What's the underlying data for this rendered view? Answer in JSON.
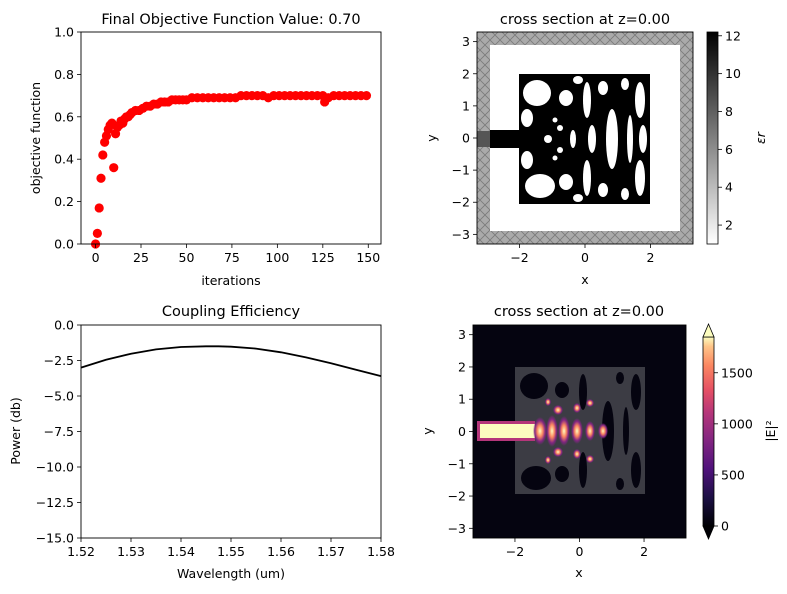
{
  "colors": {
    "series": "#ff0000",
    "line": "#000000",
    "pec": "#aaaaaa",
    "dark": "#050410"
  },
  "chart_data": [
    {
      "type": "scatter",
      "title": "Final Objective Function Value: 0.70",
      "xlabel": "iterations",
      "ylabel": "objective function",
      "xlim": [
        -8,
        157
      ],
      "ylim": [
        0,
        1.0
      ],
      "xticks": [
        "0",
        "25",
        "50",
        "75",
        "100",
        "125",
        "150"
      ],
      "xtick_values": [
        0,
        25,
        50,
        75,
        100,
        125,
        150
      ],
      "yticks": [
        "0.0",
        "0.2",
        "0.4",
        "0.6",
        "0.8",
        "1.0"
      ],
      "ytick_values": [
        0,
        0.2,
        0.4,
        0.6,
        0.8,
        1.0
      ],
      "x": [
        0,
        1,
        2,
        3,
        4,
        5,
        6,
        7,
        8,
        9,
        10,
        11,
        12,
        13,
        14,
        15,
        16,
        17,
        18,
        19,
        20,
        22,
        24,
        26,
        28,
        30,
        32,
        34,
        36,
        38,
        40,
        42,
        44,
        46,
        48,
        50,
        53,
        56,
        59,
        62,
        65,
        68,
        71,
        74,
        77,
        80,
        83,
        86,
        89,
        92,
        95,
        98,
        101,
        104,
        107,
        110,
        113,
        116,
        119,
        122,
        125,
        126,
        128,
        131,
        134,
        137,
        140,
        143,
        146,
        149
      ],
      "y": [
        0.0,
        0.05,
        0.17,
        0.31,
        0.42,
        0.48,
        0.51,
        0.54,
        0.56,
        0.57,
        0.36,
        0.52,
        0.55,
        0.56,
        0.58,
        0.57,
        0.59,
        0.6,
        0.6,
        0.61,
        0.62,
        0.63,
        0.63,
        0.64,
        0.65,
        0.65,
        0.66,
        0.66,
        0.67,
        0.67,
        0.67,
        0.68,
        0.68,
        0.68,
        0.68,
        0.68,
        0.69,
        0.69,
        0.69,
        0.69,
        0.69,
        0.69,
        0.69,
        0.69,
        0.69,
        0.7,
        0.7,
        0.7,
        0.7,
        0.7,
        0.69,
        0.7,
        0.7,
        0.7,
        0.7,
        0.7,
        0.7,
        0.7,
        0.7,
        0.7,
        0.7,
        0.67,
        0.69,
        0.7,
        0.7,
        0.7,
        0.7,
        0.7,
        0.7,
        0.7
      ]
    },
    {
      "type": "heatmap",
      "title": "cross section at z=0.00",
      "xlabel": "x",
      "ylabel": "y",
      "xlim": [
        -3.3,
        3.3
      ],
      "ylim": [
        -3.3,
        3.3
      ],
      "xticks": [
        "−2",
        "0",
        "2"
      ],
      "xtick_values": [
        -2,
        0,
        2
      ],
      "yticks": [
        "−3",
        "−2",
        "−1",
        "0",
        "1",
        "2",
        "3"
      ],
      "ytick_values": [
        -3,
        -2,
        -1,
        0,
        1,
        2,
        3
      ],
      "colorbar_label": "εr",
      "colorbar_ticks": [
        "2",
        "4",
        "6",
        "8",
        "10",
        "12"
      ],
      "colorbar_tick_values": [
        2,
        4,
        6,
        8,
        10,
        12
      ],
      "colorbar_range": [
        1,
        12.2
      ]
    },
    {
      "type": "line",
      "title": "Coupling Efficiency",
      "xlabel": "Wavelength (um)",
      "ylabel": "Power (db)",
      "xlim": [
        1.52,
        1.58
      ],
      "ylim": [
        -15.0,
        0.0
      ],
      "xticks": [
        "1.52",
        "1.53",
        "1.54",
        "1.55",
        "1.56",
        "1.57",
        "1.58"
      ],
      "xtick_values": [
        1.52,
        1.53,
        1.54,
        1.55,
        1.56,
        1.57,
        1.58
      ],
      "yticks": [
        "0.0",
        "−2.5",
        "−5.0",
        "−7.5",
        "−10.0",
        "−12.5",
        "−15.0"
      ],
      "ytick_values": [
        0,
        -2.5,
        -5.0,
        -7.5,
        -10.0,
        -12.5,
        -15.0
      ],
      "x": [
        1.52,
        1.525,
        1.53,
        1.535,
        1.54,
        1.545,
        1.5475,
        1.55,
        1.555,
        1.56,
        1.565,
        1.57,
        1.575,
        1.58
      ],
      "y": [
        -3.0,
        -2.45,
        -2.02,
        -1.72,
        -1.55,
        -1.5,
        -1.5,
        -1.53,
        -1.66,
        -1.92,
        -2.28,
        -2.7,
        -3.15,
        -3.6
      ]
    },
    {
      "type": "heatmap",
      "title": "cross section at z=0.00",
      "xlabel": "x",
      "ylabel": "y",
      "xlim": [
        -3.3,
        3.3
      ],
      "ylim": [
        -3.3,
        3.3
      ],
      "xticks": [
        "−2",
        "0",
        "2"
      ],
      "xtick_values": [
        -2,
        0,
        2
      ],
      "yticks": [
        "−3",
        "−2",
        "−1",
        "0",
        "1",
        "2",
        "3"
      ],
      "ytick_values": [
        -3,
        -2,
        -1,
        0,
        1,
        2,
        3
      ],
      "colorbar_label": "|E|²",
      "colorbar_ticks": [
        "0",
        "500",
        "1000",
        "1500"
      ],
      "colorbar_tick_values": [
        0,
        500,
        1000,
        1500
      ],
      "colorbar_range": [
        0,
        1850
      ],
      "colorbar_extend": "both"
    }
  ]
}
